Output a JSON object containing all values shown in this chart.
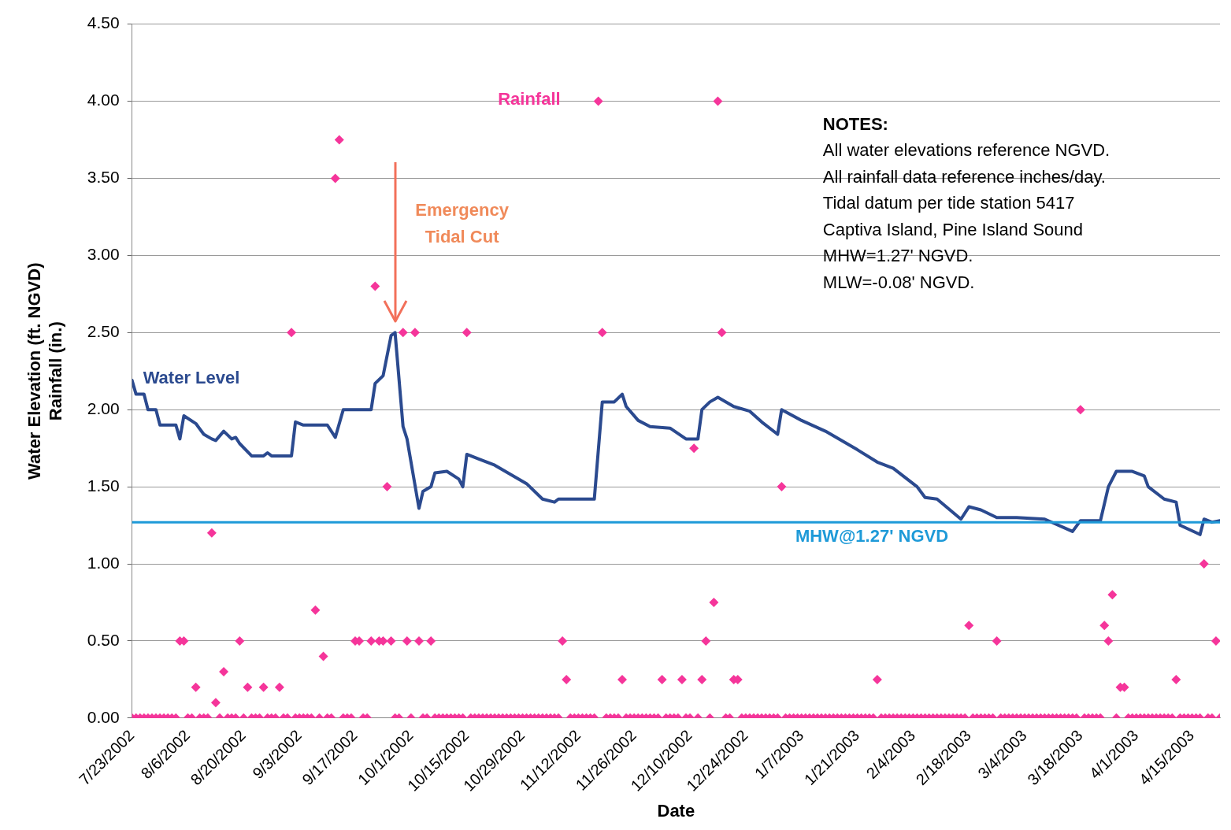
{
  "chart_data": {
    "type": "line",
    "xlabel": "Date",
    "ylabel": "Water Elevation (ft. NGVD)\nRainfall (in.)",
    "x": [
      "2002-07-23",
      "2002-07-24",
      "2002-07-25",
      "2002-07-26",
      "2002-07-27",
      "2002-07-28",
      "2002-07-29",
      "2002-07-30",
      "2002-07-31",
      "2002-08-01",
      "2002-08-02",
      "2002-08-03",
      "2002-08-04",
      "2002-08-05",
      "2002-08-06",
      "2002-08-07",
      "2002-08-08",
      "2002-08-09",
      "2002-08-10",
      "2002-08-11",
      "2002-08-12",
      "2002-08-13",
      "2002-08-14",
      "2002-08-15",
      "2002-08-16",
      "2002-08-17",
      "2002-08-18",
      "2002-08-19",
      "2002-08-20",
      "2002-08-21",
      "2002-08-22",
      "2002-08-23",
      "2002-08-24",
      "2002-08-25",
      "2002-08-26",
      "2002-08-27",
      "2002-08-28",
      "2002-08-29",
      "2002-08-30",
      "2002-08-31",
      "2002-09-01",
      "2002-09-02",
      "2002-09-03",
      "2002-09-04",
      "2002-09-05",
      "2002-09-06",
      "2002-09-07",
      "2002-09-08",
      "2002-09-09",
      "2002-09-10",
      "2002-09-11",
      "2002-09-12",
      "2002-09-13",
      "2002-09-14",
      "2002-09-15",
      "2002-09-16",
      "2002-09-17",
      "2002-09-18",
      "2002-09-19",
      "2002-09-20",
      "2002-09-21",
      "2002-09-22",
      "2002-09-23",
      "2002-09-24",
      "2002-09-25",
      "2002-09-26",
      "2002-09-27",
      "2002-09-28",
      "2002-09-29",
      "2002-09-30",
      "2002-10-01",
      "2002-10-02",
      "2002-10-03",
      "2002-10-04",
      "2002-10-05",
      "2002-10-06",
      "2002-10-07",
      "2002-10-08",
      "2002-10-09",
      "2002-10-10",
      "2002-10-11",
      "2002-10-12",
      "2002-10-13",
      "2002-10-14",
      "2002-10-15",
      "2002-10-16",
      "2002-10-17",
      "2002-10-18",
      "2002-10-19",
      "2002-10-20",
      "2002-10-21",
      "2002-10-22",
      "2002-10-23",
      "2002-10-24",
      "2002-10-25",
      "2002-10-26",
      "2002-10-27",
      "2002-10-28",
      "2002-10-29",
      "2002-10-30",
      "2002-10-31",
      "2002-11-01",
      "2002-11-02",
      "2002-11-03",
      "2002-11-04",
      "2002-11-05",
      "2002-11-06",
      "2002-11-07",
      "2002-11-08",
      "2002-11-09",
      "2002-11-10",
      "2002-11-11",
      "2002-11-12",
      "2002-11-13",
      "2002-11-14",
      "2002-11-15",
      "2002-11-16",
      "2002-11-17",
      "2002-11-18",
      "2002-11-19",
      "2002-11-20",
      "2002-11-21",
      "2002-11-22",
      "2002-11-23",
      "2002-11-24",
      "2002-11-25",
      "2002-11-26",
      "2002-11-27",
      "2002-11-28",
      "2002-11-29",
      "2002-11-30",
      "2002-12-01",
      "2002-12-02",
      "2002-12-03",
      "2002-12-04",
      "2002-12-05",
      "2002-12-06",
      "2002-12-07",
      "2002-12-08",
      "2002-12-09",
      "2002-12-10",
      "2002-12-11",
      "2002-12-12",
      "2002-12-13",
      "2002-12-14",
      "2002-12-15",
      "2002-12-16",
      "2002-12-17",
      "2002-12-18",
      "2002-12-19",
      "2002-12-20",
      "2002-12-21",
      "2002-12-22",
      "2002-12-23",
      "2002-12-24",
      "2002-12-25",
      "2002-12-26",
      "2002-12-27",
      "2002-12-28",
      "2002-12-29",
      "2002-12-30",
      "2002-12-31",
      "2003-01-01",
      "2003-01-02",
      "2003-01-03",
      "2003-01-04",
      "2003-01-05",
      "2003-01-06",
      "2003-01-07",
      "2003-01-08",
      "2003-01-09",
      "2003-01-10",
      "2003-01-11",
      "2003-01-12",
      "2003-01-13",
      "2003-01-14",
      "2003-01-15",
      "2003-01-16",
      "2003-01-17",
      "2003-01-18",
      "2003-01-19",
      "2003-01-20",
      "2003-01-21",
      "2003-01-22",
      "2003-01-23",
      "2003-01-24",
      "2003-01-25",
      "2003-01-26",
      "2003-01-27",
      "2003-01-28",
      "2003-01-29",
      "2003-01-30",
      "2003-01-31",
      "2003-02-01",
      "2003-02-02",
      "2003-02-03",
      "2003-02-04",
      "2003-02-05",
      "2003-02-06",
      "2003-02-07",
      "2003-02-08",
      "2003-02-09",
      "2003-02-10",
      "2003-02-11",
      "2003-02-12",
      "2003-02-13",
      "2003-02-14",
      "2003-02-15",
      "2003-02-16",
      "2003-02-17",
      "2003-02-18",
      "2003-02-19",
      "2003-02-20",
      "2003-02-21",
      "2003-02-22",
      "2003-02-23",
      "2003-02-24",
      "2003-02-25",
      "2003-02-26",
      "2003-02-27",
      "2003-02-28",
      "2003-03-01",
      "2003-03-02",
      "2003-03-03",
      "2003-03-04",
      "2003-03-05",
      "2003-03-06",
      "2003-03-07",
      "2003-03-08",
      "2003-03-09",
      "2003-03-10",
      "2003-03-11",
      "2003-03-12",
      "2003-03-13",
      "2003-03-14",
      "2003-03-15",
      "2003-03-16",
      "2003-03-17",
      "2003-03-18",
      "2003-03-19",
      "2003-03-20",
      "2003-03-21",
      "2003-03-22",
      "2003-03-23",
      "2003-03-24",
      "2003-03-25",
      "2003-03-26",
      "2003-03-27",
      "2003-03-28",
      "2003-03-29",
      "2003-03-30",
      "2003-03-31",
      "2003-04-01",
      "2003-04-02",
      "2003-04-03",
      "2003-04-04",
      "2003-04-05",
      "2003-04-06",
      "2003-04-07",
      "2003-04-08",
      "2003-04-09",
      "2003-04-10",
      "2003-04-11",
      "2003-04-12",
      "2003-04-13",
      "2003-04-14",
      "2003-04-15",
      "2003-04-16",
      "2003-04-17",
      "2003-04-18",
      "2003-04-19",
      "2003-04-20",
      "2003-04-21",
      "2003-04-22"
    ],
    "series": [
      {
        "name": "Water Level",
        "type": "line",
        "color": "#2b4a8f",
        "marker": "none",
        "line_style": "solid",
        "x": [
          "2002-07-23",
          "2002-07-24",
          "2002-07-26",
          "2002-07-27",
          "2002-07-29",
          "2002-07-30",
          "2002-08-03",
          "2002-08-04",
          "2002-08-05",
          "2002-08-08",
          "2002-08-10",
          "2002-08-12",
          "2002-08-13",
          "2002-08-15",
          "2002-08-17",
          "2002-08-18",
          "2002-08-19",
          "2002-08-22",
          "2002-08-25",
          "2002-08-26",
          "2002-08-27",
          "2002-09-01",
          "2002-09-02",
          "2002-09-04",
          "2002-09-10",
          "2002-09-12",
          "2002-09-14",
          "2002-09-21",
          "2002-09-22",
          "2002-09-24",
          "2002-09-26",
          "2002-09-27",
          "2002-09-29",
          "2002-09-30",
          "2002-10-03",
          "2002-10-04",
          "2002-10-06",
          "2002-10-07",
          "2002-10-10",
          "2002-10-13",
          "2002-10-14",
          "2002-10-15",
          "2002-10-18",
          "2002-10-22",
          "2002-10-26",
          "2002-10-30",
          "2002-11-03",
          "2002-11-06",
          "2002-11-07",
          "2002-11-16",
          "2002-11-18",
          "2002-11-21",
          "2002-11-23",
          "2002-11-24",
          "2002-11-27",
          "2002-11-30",
          "2002-12-05",
          "2002-12-09",
          "2002-12-12",
          "2002-12-13",
          "2002-12-15",
          "2002-12-17",
          "2002-12-21",
          "2002-12-25",
          "2002-12-28",
          "2003-01-01",
          "2003-01-02",
          "2003-01-07",
          "2003-01-13",
          "2003-01-21",
          "2003-01-26",
          "2003-01-30",
          "2003-02-05",
          "2003-02-07",
          "2003-02-10",
          "2003-02-16",
          "2003-02-18",
          "2003-02-21",
          "2003-02-25",
          "2003-03-02",
          "2003-03-09",
          "2003-03-16",
          "2003-03-18",
          "2003-03-23",
          "2003-03-25",
          "2003-03-27",
          "2003-03-31",
          "2003-04-03",
          "2003-04-04",
          "2003-04-08",
          "2003-04-11",
          "2003-04-12",
          "2003-04-17",
          "2003-04-18",
          "2003-04-20",
          "2003-04-22"
        ],
        "values": [
          2.19,
          2.1,
          2.1,
          2.0,
          2.0,
          1.9,
          1.9,
          1.81,
          1.96,
          1.91,
          1.84,
          1.81,
          1.8,
          1.86,
          1.81,
          1.82,
          1.78,
          1.7,
          1.7,
          1.72,
          1.7,
          1.7,
          1.92,
          1.9,
          1.9,
          1.82,
          2.0,
          2.0,
          2.17,
          2.22,
          2.48,
          2.5,
          1.89,
          1.81,
          1.36,
          1.47,
          1.5,
          1.59,
          1.6,
          1.55,
          1.5,
          1.71,
          1.68,
          1.64,
          1.58,
          1.52,
          1.42,
          1.4,
          1.42,
          1.42,
          2.05,
          2.05,
          2.1,
          2.02,
          1.93,
          1.89,
          1.88,
          1.81,
          1.81,
          2.0,
          2.05,
          2.08,
          2.02,
          1.99,
          1.92,
          1.84,
          2.0,
          1.93,
          1.86,
          1.74,
          1.66,
          1.62,
          1.5,
          1.43,
          1.42,
          1.29,
          1.37,
          1.35,
          1.3,
          1.3,
          1.29,
          1.21,
          1.28,
          1.28,
          1.5,
          1.6,
          1.6,
          1.57,
          1.5,
          1.42,
          1.4,
          1.25,
          1.19,
          1.29,
          1.27,
          1.28
        ]
      },
      {
        "name": "Rainfall",
        "type": "scatter",
        "color": "#f5359a",
        "marker": "diamond",
        "values": [
          0,
          0,
          0,
          0,
          0,
          0,
          0,
          0,
          0,
          0,
          0,
          0,
          0.5,
          0.5,
          0,
          0,
          0.2,
          0,
          0,
          0,
          1.2,
          0.1,
          0,
          0.3,
          0,
          0,
          0,
          0.5,
          0,
          0.2,
          0,
          0,
          0,
          0.2,
          0,
          0,
          0,
          0.2,
          0,
          0,
          2.5,
          0,
          0,
          0,
          0,
          0,
          0.7,
          0,
          0.4,
          0,
          0,
          3.5,
          3.75,
          0,
          0,
          0,
          0.5,
          0.5,
          0,
          0,
          0.5,
          2.8,
          0.5,
          0.5,
          1.5,
          0.5,
          0,
          0,
          2.5,
          0.5,
          0,
          2.5,
          0.5,
          0,
          0,
          0.5,
          0,
          0,
          0,
          0,
          0,
          0,
          0,
          0,
          2.5,
          0,
          0,
          0,
          0,
          0,
          0,
          0,
          0,
          0,
          0,
          0,
          0,
          0,
          0,
          0,
          0,
          0,
          0,
          0,
          0,
          0,
          0,
          0,
          0.5,
          0.25,
          0,
          0,
          0,
          0,
          0,
          0,
          0,
          4,
          2.5,
          0,
          0,
          0,
          0,
          0.25,
          0,
          0,
          0,
          0,
          0,
          0,
          0,
          0,
          0,
          0.25,
          0,
          0,
          0,
          0,
          0.25,
          0,
          0,
          1.75,
          0,
          0.25,
          0.5,
          0,
          0.75,
          4,
          2.5,
          0,
          0,
          0.25,
          0.25,
          0,
          0,
          0,
          0,
          0,
          0,
          0,
          0,
          0,
          0,
          1.5,
          0,
          0,
          0,
          0,
          0,
          0,
          0,
          0,
          0,
          0,
          0,
          0,
          0,
          0,
          0,
          0,
          0,
          0,
          0,
          0,
          0,
          0,
          0,
          0.25,
          0,
          0,
          0,
          0,
          0,
          0,
          0,
          0,
          0,
          0,
          0,
          0,
          0,
          0,
          0,
          0,
          0,
          0,
          0,
          0,
          0,
          0,
          0.6,
          0,
          0,
          0,
          0,
          0,
          0,
          0.5,
          0,
          0,
          0,
          0,
          0,
          0,
          0,
          0,
          0,
          0,
          0,
          0,
          0,
          0,
          0,
          0,
          0,
          0,
          0,
          0,
          2,
          0,
          0,
          0,
          0,
          0,
          0.6,
          0.5,
          0.8,
          0,
          0.2,
          0.2,
          0,
          0,
          0,
          0,
          0,
          0,
          0,
          0,
          0,
          0,
          0,
          0,
          0.25,
          0,
          0,
          0,
          0,
          0,
          0,
          1,
          0,
          0,
          0.5,
          0
        ]
      }
    ],
    "xlim": [
      "2002-07-23",
      "2003-04-22"
    ],
    "xticks": [
      {
        "value": "2002-07-23",
        "label": "7/23/2002"
      },
      {
        "value": "2002-08-06",
        "label": "8/6/2002"
      },
      {
        "value": "2002-08-20",
        "label": "8/20/2002"
      },
      {
        "value": "2002-09-03",
        "label": "9/3/2002"
      },
      {
        "value": "2002-09-17",
        "label": "9/17/2002"
      },
      {
        "value": "2002-10-01",
        "label": "10/1/2002"
      },
      {
        "value": "2002-10-15",
        "label": "10/15/2002"
      },
      {
        "value": "2002-10-29",
        "label": "10/29/2002"
      },
      {
        "value": "2002-11-12",
        "label": "11/12/2002"
      },
      {
        "value": "2002-11-26",
        "label": "11/26/2002"
      },
      {
        "value": "2002-12-10",
        "label": "12/10/2002"
      },
      {
        "value": "2002-12-24",
        "label": "12/24/2002"
      },
      {
        "value": "2003-01-07",
        "label": "1/7/2003"
      },
      {
        "value": "2003-01-21",
        "label": "1/21/2003"
      },
      {
        "value": "2003-02-04",
        "label": "2/4/2003"
      },
      {
        "value": "2003-02-18",
        "label": "2/18/2003"
      },
      {
        "value": "2003-03-04",
        "label": "3/4/2003"
      },
      {
        "value": "2003-03-18",
        "label": "3/18/2003"
      },
      {
        "value": "2003-04-01",
        "label": "4/1/2003"
      },
      {
        "value": "2003-04-15",
        "label": "4/15/2003"
      }
    ],
    "ylim": [
      0,
      4.5
    ],
    "yticks": [
      {
        "value": 0,
        "label": "0.00"
      },
      {
        "value": 0.5,
        "label": "0.50"
      },
      {
        "value": 1,
        "label": "1.00"
      },
      {
        "value": 1.5,
        "label": "1.50"
      },
      {
        "value": 2,
        "label": "2.00"
      },
      {
        "value": 2.5,
        "label": "2.50"
      },
      {
        "value": 3,
        "label": "3.00"
      },
      {
        "value": 3.5,
        "label": "3.50"
      },
      {
        "value": 4,
        "label": "4.00"
      },
      {
        "value": 4.5,
        "label": "4.50"
      }
    ],
    "ref_lines": [
      {
        "axis": "y",
        "value": 1.27,
        "label": "MHW@1.27' NGVD",
        "color": "#1e9ad8"
      }
    ],
    "annotations": [
      "Emergency\nTidal Cut",
      "NOTES:\nAll water elevations reference NGVD.\nAll rainfall data reference inches/day.\nTidal datum per tide station 5417\nCaptiva Island, Pine Island Sound\nMHW=1.27' NGVD.\nMLW=-0.08' NGVD."
    ],
    "grid": "y",
    "legend": false
  }
}
